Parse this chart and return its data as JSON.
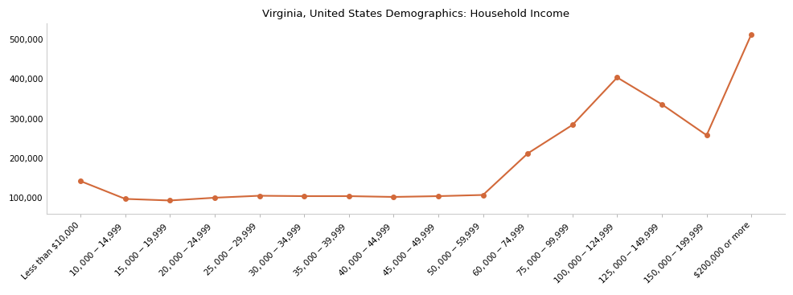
{
  "title": "Virginia, United States Demographics: Household Income",
  "categories": [
    "Less than $10,000",
    "$10,000 - $14,999",
    "$15,000 - $19,999",
    "$20,000 - $24,999",
    "$25,000 - $29,999",
    "$30,000 - $34,999",
    "$35,000 - $39,999",
    "$40,000 - $44,999",
    "$45,000 - $49,999",
    "$50,000 - $59,999",
    "$60,000 - $74,999",
    "$75,000 - $99,999",
    "$100,000 - $124,999",
    "$125,000 - $149,999",
    "$150,000 - $199,999",
    "$200,000 or more"
  ],
  "values": [
    142000,
    97000,
    93000,
    100000,
    105000,
    104000,
    104000,
    102000,
    104000,
    107000,
    212000,
    284000,
    404000,
    336000,
    258000,
    513000
  ],
  "line_color": "#d2693a",
  "marker": "o",
  "marker_size": 4,
  "linewidth": 1.5,
  "ylim": [
    60000,
    540000
  ],
  "yticks": [
    100000,
    200000,
    300000,
    400000,
    500000
  ],
  "bg_color": "#ffffff",
  "title_fontsize": 9.5,
  "tick_fontsize": 7.5
}
